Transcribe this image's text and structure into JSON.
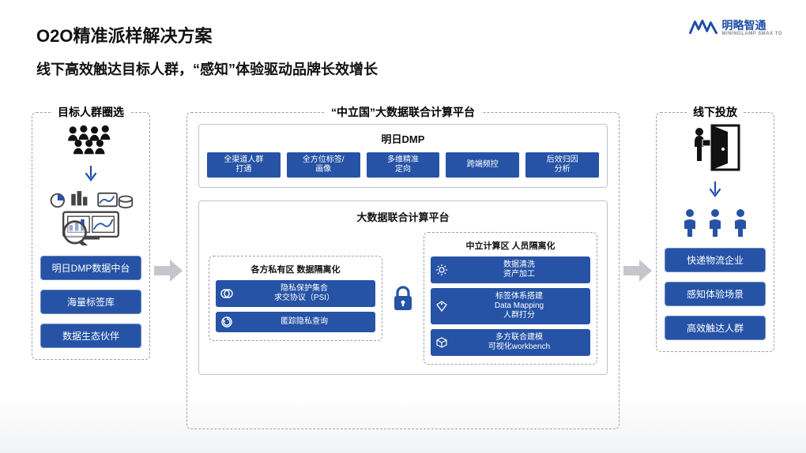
{
  "colors": {
    "primary": "#2653a6",
    "primary_dark": "#1f4ea8",
    "border_gray": "#bfc4cc",
    "dash_gray": "#9aa0a6",
    "arrow_gray": "#bcbec2",
    "text": "#111111",
    "white": "#ffffff"
  },
  "header": {
    "title": "O2O精准派样解决方案",
    "subtitle": "线下高效触达目标人群，“感知”体验驱动品牌长效增长"
  },
  "logo": {
    "name": "明略智通",
    "sub": "MININGLAMP SMAX TO"
  },
  "left": {
    "title": "目标人群圈选",
    "pills": [
      "明日DMP数据中台",
      "海量标签库",
      "数据生态伙伴"
    ]
  },
  "center": {
    "title": "“中立国”大数据联合计算平台",
    "dmp": {
      "title": "明日DMP",
      "tags": [
        "全渠道人群\n打通",
        "全方位标签/\n画像",
        "多维精准\n定向",
        "跨端频控",
        "后效归因\n分析"
      ]
    },
    "compute": {
      "title": "大数据联合计算平台",
      "left": {
        "title": "各方私有区 数据隔离化",
        "items": [
          {
            "icon": "intersect",
            "label": "隐私保护集合\n求交协议（PSI）"
          },
          {
            "icon": "refresh",
            "label": "匿踪隐私查询"
          }
        ]
      },
      "right": {
        "title": "中立计算区 人员隔离化",
        "items": [
          {
            "icon": "gear",
            "label": "数据清洗\n资产加工"
          },
          {
            "icon": "tag",
            "label": "标签体系搭建\nData Mapping\n人群打分"
          },
          {
            "icon": "cube",
            "label": "多方联合建模\n可视化workbench"
          }
        ]
      }
    }
  },
  "right": {
    "title": "线下投放",
    "pills": [
      "快递物流企业",
      "感知体验场景",
      "高效触达人群"
    ]
  }
}
